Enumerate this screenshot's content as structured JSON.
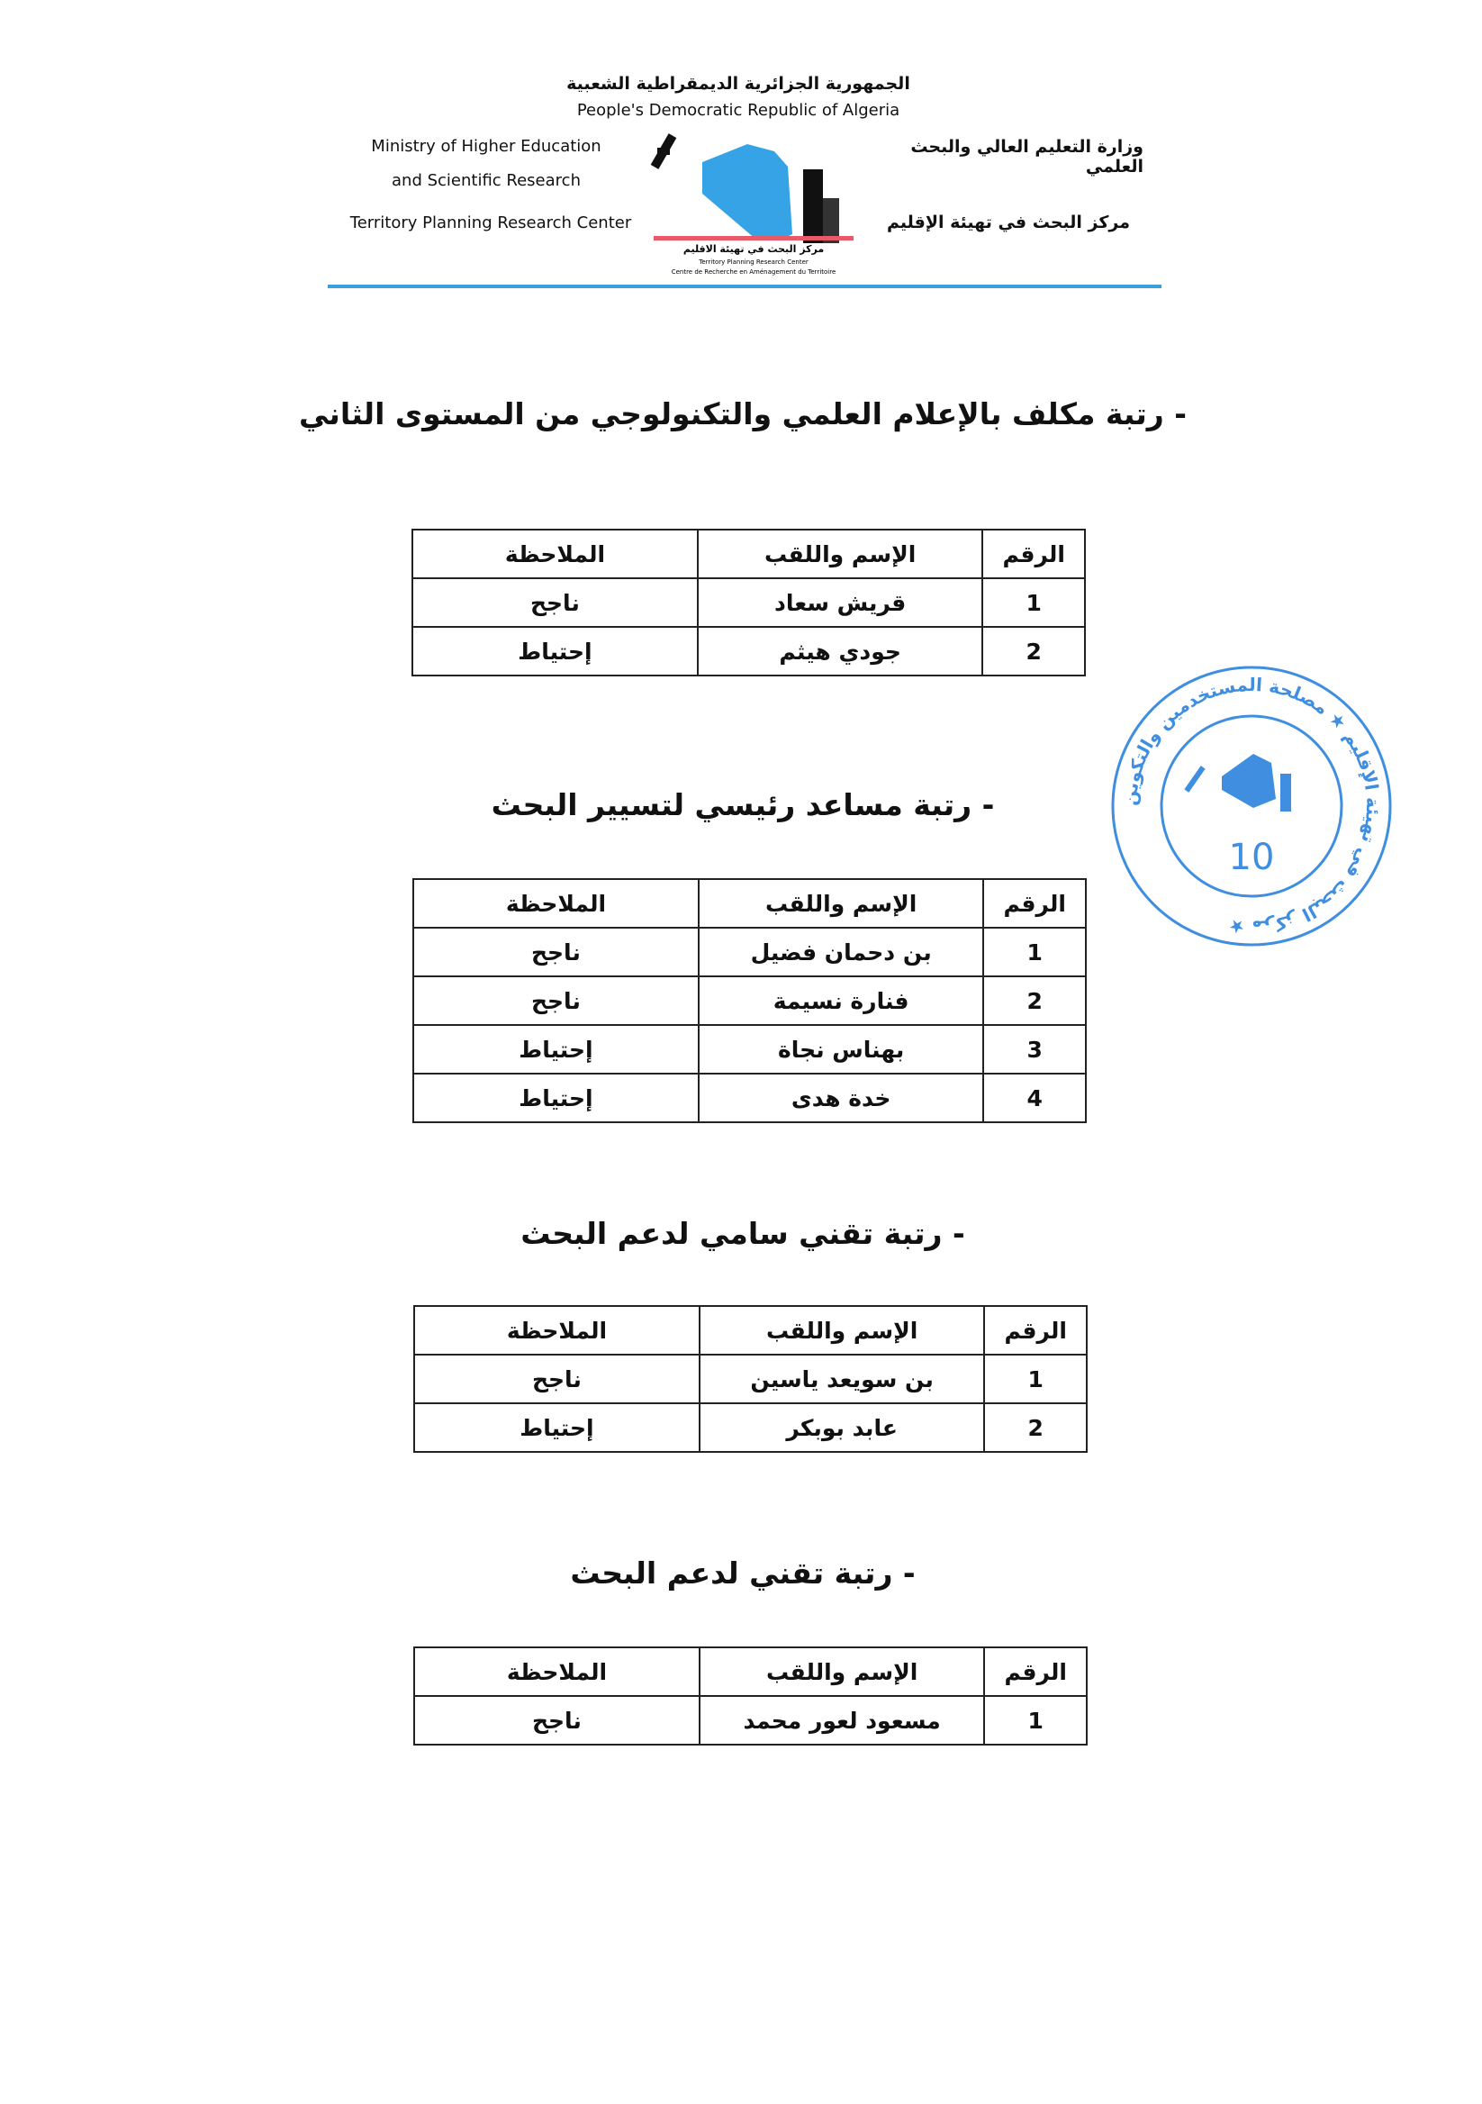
{
  "letterhead": {
    "ar_republic": "الجمهورية الجزائرية الديمقراطية الشعبية",
    "en_republic": "People's Democratic Republic of Algeria",
    "en_ministry_1": "Ministry of Higher Education",
    "en_ministry_2": "and Scientific Research",
    "en_center": "Territory Planning Research Center",
    "ar_ministry": "وزارة التعليم العالي والبحث العلمي",
    "ar_center": "مركز البحث في تهيئة الإقليم",
    "logo_ar": "مركز البحث في تهيئة الاقليم",
    "logo_en": "Territory Planning Research Center",
    "logo_fr": "Centre de Recherche en Aménagement du Territoire"
  },
  "headers": {
    "num": "الرقم",
    "name": "الإسم واللقب",
    "note": "الملاحظة"
  },
  "sections": [
    {
      "title": "- رتبة مكلف بالإعلام العلمي والتكنولوجي من المستوى الثاني",
      "rows": [
        {
          "num": "1",
          "name": "قريش سعاد",
          "note": "ناجح"
        },
        {
          "num": "2",
          "name": "جودي هيثم",
          "note": "إحتياط"
        }
      ]
    },
    {
      "title": "- رتبة مساعد رئيسي لتسيير البحث",
      "rows": [
        {
          "num": "1",
          "name": "بن دحمان فضيل",
          "note": "ناجح"
        },
        {
          "num": "2",
          "name": "فنارة نسيمة",
          "note": "ناجح"
        },
        {
          "num": "3",
          "name": "بهناس نجاة",
          "note": "إحتياط"
        },
        {
          "num": "4",
          "name": "خدة هدى",
          "note": "إحتياط"
        }
      ]
    },
    {
      "title": "- رتبة تقني سامي لدعم البحث",
      "rows": [
        {
          "num": "1",
          "name": "بن سويعد ياسين",
          "note": "ناجح"
        },
        {
          "num": "2",
          "name": "عابد بوبكر",
          "note": "إحتياط"
        }
      ]
    },
    {
      "title": "- رتبة تقني لدعم البحث",
      "rows": [
        {
          "num": "1",
          "name": "مسعود لعور محمد",
          "note": "ناجح"
        }
      ]
    }
  ],
  "stamp": {
    "outer_text": "مركز البحث في تهيئة الإقليم ★ مصلحة المستخدمين والتكوين ★",
    "number": "10",
    "color": "#3f8ee0"
  },
  "colors": {
    "rule": "#3aa0dc",
    "logo_map": "#36a3e6",
    "logo_bar": "#e85a6a"
  }
}
